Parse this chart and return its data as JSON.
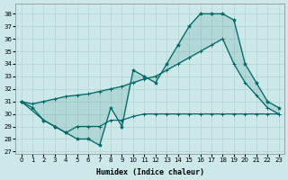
{
  "xlabel": "Humidex (Indice chaleur)",
  "xlim": [
    -0.5,
    23.5
  ],
  "ylim": [
    26.8,
    38.8
  ],
  "yticks": [
    27,
    28,
    29,
    30,
    31,
    32,
    33,
    34,
    35,
    36,
    37,
    38
  ],
  "xticks": [
    0,
    1,
    2,
    3,
    4,
    5,
    6,
    7,
    8,
    9,
    10,
    11,
    12,
    13,
    14,
    15,
    16,
    17,
    18,
    19,
    20,
    21,
    22,
    23
  ],
  "bg_color": "#cce8e8",
  "line_color": "#006868",
  "line1_x": [
    0,
    1,
    2,
    3,
    4,
    5,
    6,
    7,
    8,
    9,
    10,
    11,
    12,
    13,
    14,
    15,
    16,
    17,
    18,
    19,
    20,
    21,
    22,
    23
  ],
  "line1_y": [
    31.0,
    30.5,
    29.5,
    29.0,
    28.5,
    28.0,
    28.0,
    27.5,
    30.5,
    29.0,
    33.5,
    33.0,
    32.5,
    34.0,
    35.5,
    37.0,
    38.0,
    38.0,
    38.0,
    37.5,
    34.0,
    32.5,
    31.0,
    30.5
  ],
  "line2_x": [
    0,
    1,
    2,
    3,
    4,
    5,
    6,
    7,
    8,
    9,
    10,
    11,
    12,
    13,
    14,
    15,
    16,
    17,
    18,
    19,
    20,
    21,
    22,
    23
  ],
  "line2_y": [
    31.0,
    30.8,
    31.0,
    31.2,
    31.4,
    31.5,
    31.6,
    31.8,
    32.0,
    32.2,
    32.5,
    32.8,
    33.0,
    33.5,
    34.0,
    34.5,
    35.0,
    35.5,
    36.0,
    34.0,
    32.5,
    31.5,
    30.5,
    30.0
  ],
  "line3_x": [
    0,
    2,
    3,
    4,
    5,
    6,
    7,
    8,
    9,
    10,
    11,
    12,
    13,
    14,
    15,
    16,
    17,
    18,
    19,
    20,
    21,
    22,
    23
  ],
  "line3_y": [
    31.0,
    29.5,
    29.0,
    28.5,
    29.0,
    29.0,
    29.0,
    29.5,
    29.5,
    29.8,
    30.0,
    30.0,
    30.0,
    30.0,
    30.0,
    30.0,
    30.0,
    30.0,
    30.0,
    30.0,
    30.0,
    30.0,
    30.0
  ]
}
